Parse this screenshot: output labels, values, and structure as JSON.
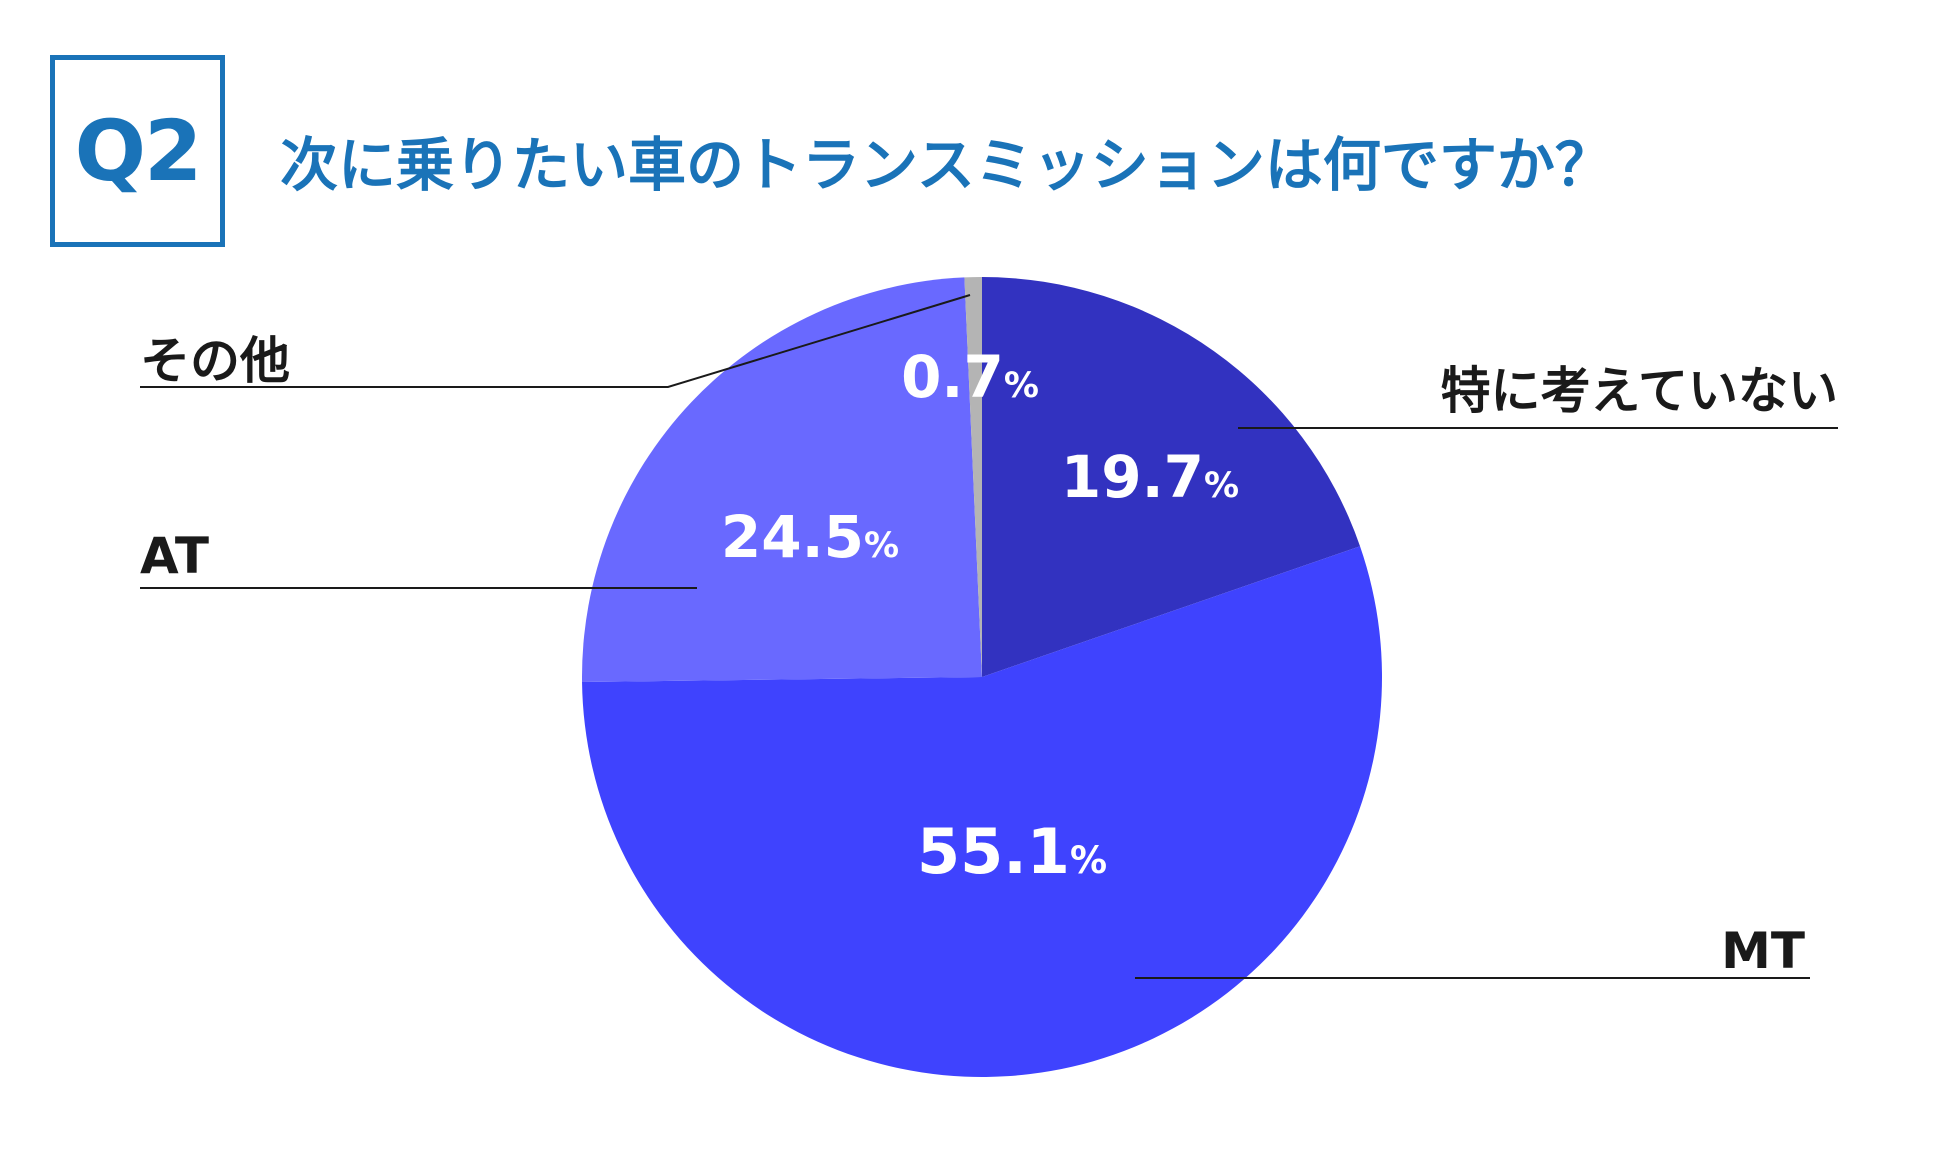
{
  "header": {
    "q_label": "Q2",
    "title": "次に乗りたい車のトランスミッションは何ですか？"
  },
  "chart_data": {
    "type": "pie",
    "title": "次に乗りたい車のトランスミッションは何ですか？",
    "categories": [
      "特に考えていない",
      "MT",
      "AT",
      "その他"
    ],
    "values": [
      19.7,
      55.1,
      24.5,
      0.7
    ],
    "value_labels": [
      "19.7",
      "55.1",
      "24.5",
      "0.7"
    ],
    "unit": "%",
    "colors": [
      "#3232c0",
      "#3f43fe",
      "#6969ff",
      "#b4b4b4"
    ]
  }
}
